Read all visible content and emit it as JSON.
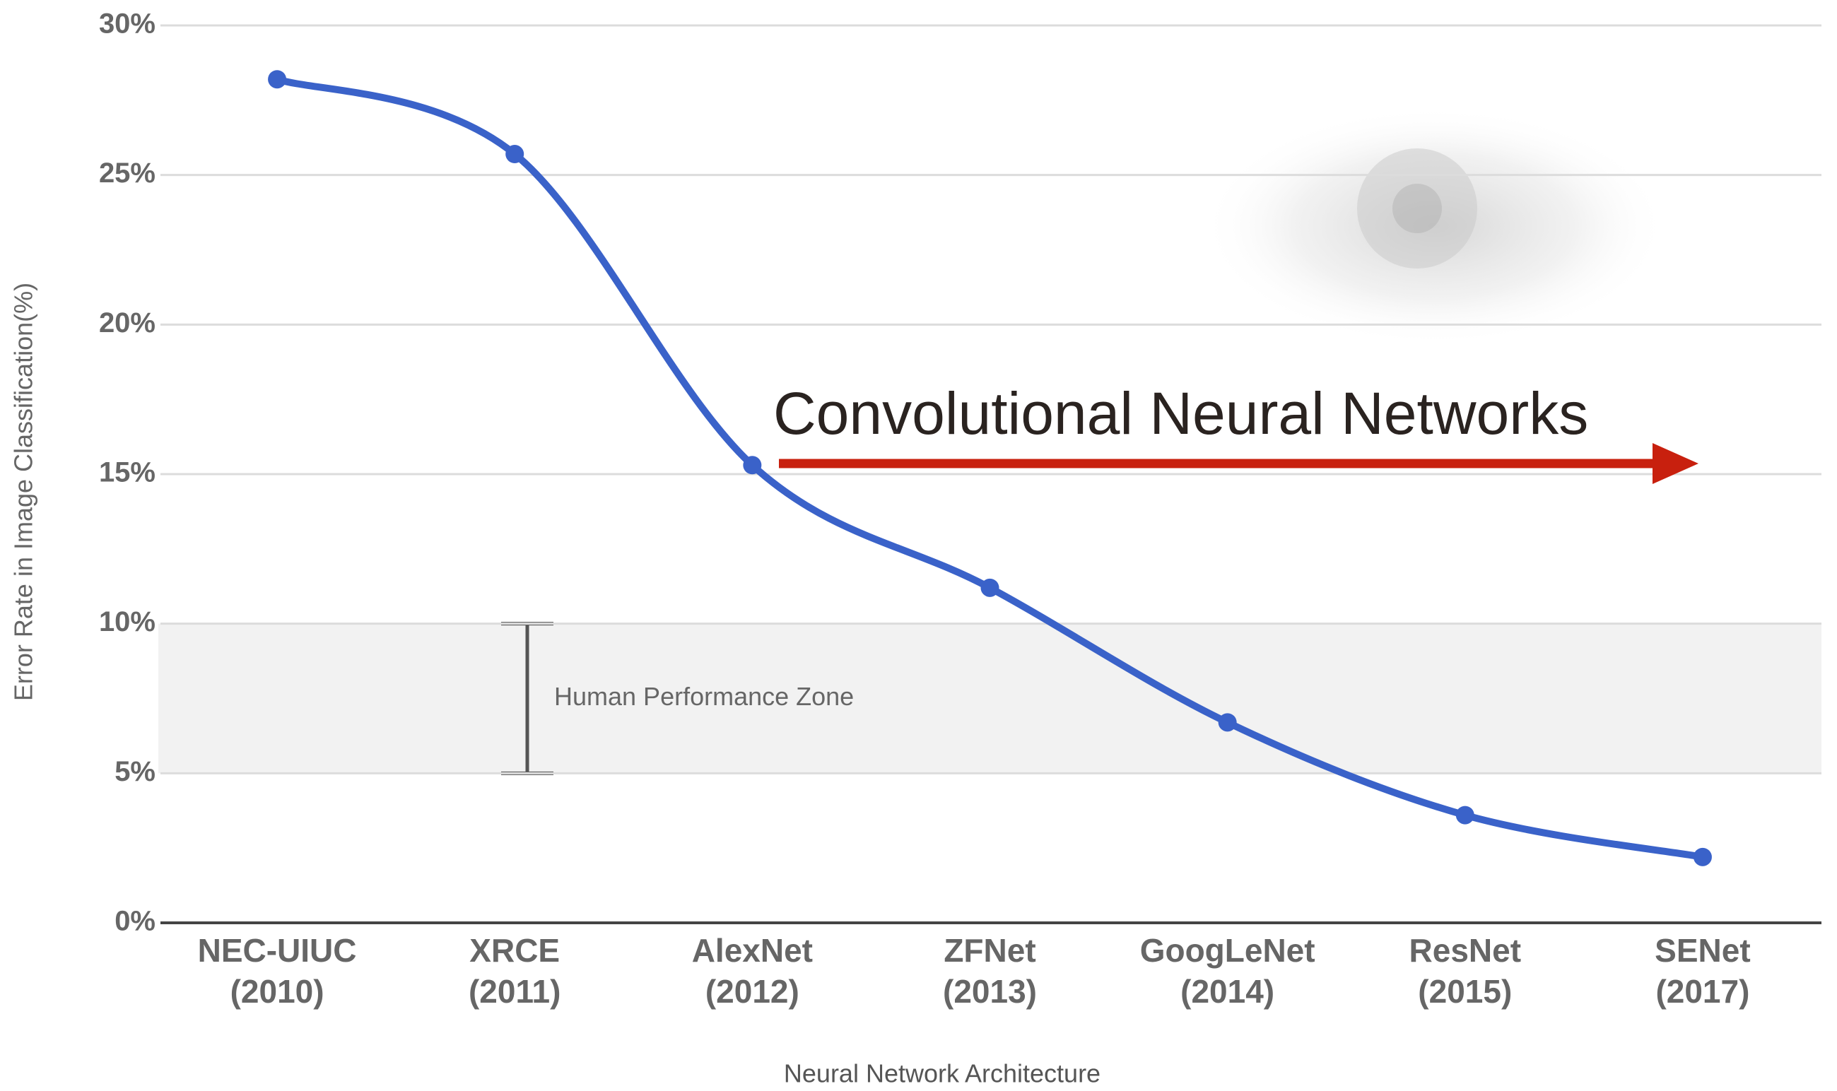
{
  "chart_data": {
    "type": "line",
    "x_label": "Neural Network Architecture",
    "y_label": "Error Rate in Image Classification(%)",
    "categories": [
      "NEC-UIUC\n(2010)",
      "XRCE\n(2011)",
      "AlexNet\n(2012)",
      "ZFNet\n(2013)",
      "GoogLeNet\n(2014)",
      "ResNet\n(2015)",
      "SENet\n(2017)"
    ],
    "values": [
      28.2,
      25.7,
      15.3,
      11.2,
      6.7,
      3.6,
      2.2
    ],
    "color": "#3a62c9",
    "ylim": [
      0,
      30
    ],
    "yticks": [
      {
        "value": 0,
        "label": "0%"
      },
      {
        "value": 5,
        "label": "5%"
      },
      {
        "value": 10,
        "label": "10%"
      },
      {
        "value": 15,
        "label": "15%"
      },
      {
        "value": 20,
        "label": "20%"
      },
      {
        "value": 25,
        "label": "25%"
      },
      {
        "value": 30,
        "label": "30%"
      }
    ],
    "grid": true,
    "human_zone": {
      "label": "Human Performance Zone",
      "ymin": 5,
      "ymax": 10
    },
    "annotation": "Convolutional Neural Networks"
  }
}
